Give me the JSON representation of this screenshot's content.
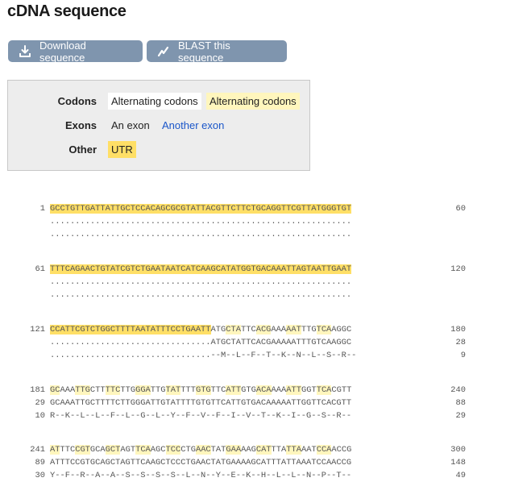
{
  "page_title": "cDNA sequence",
  "buttons": {
    "download_label": "Download sequence",
    "blast_label": "BLAST this sequence"
  },
  "legend": {
    "codons_label": "Codons",
    "codons_items": [
      "Alternating codons",
      "Alternating codons"
    ],
    "exons_label": "Exons",
    "exons_items": [
      "An exon",
      "Another exon"
    ],
    "other_label": "Other",
    "other_items": [
      "UTR"
    ]
  },
  "colors": {
    "utr": "#ffdf66",
    "codon_alt": "#fff6bd",
    "exon_link": "#1a56c9",
    "button": "#7f95ae"
  },
  "blocks": [
    {
      "rows": [
        {
          "left": "1",
          "right": "60",
          "segs": [
            [
              "u",
              "GCCTGTTGATTATTGCTCCACAGCGCGTATTACGTTCTTCTGCAGGTTCGTTATGGGTGT"
            ]
          ]
        },
        {
          "left": "",
          "right": "",
          "segs": [
            [
              "p",
              "............................................................"
            ]
          ]
        },
        {
          "left": "",
          "right": "",
          "segs": [
            [
              "p",
              "............................................................"
            ]
          ]
        }
      ]
    },
    {
      "rows": [
        {
          "left": "61",
          "right": "120",
          "segs": [
            [
              "u",
              "TTTCAGAACTGTATCGTCTGAATAATCATCAAGCATATGGTGACAAATTAGTAATTGAAT"
            ]
          ]
        },
        {
          "left": "",
          "right": "",
          "segs": [
            [
              "p",
              "............................................................"
            ]
          ]
        },
        {
          "left": "",
          "right": "",
          "segs": [
            [
              "p",
              "............................................................"
            ]
          ]
        }
      ]
    },
    {
      "rows": [
        {
          "left": "121",
          "right": "180",
          "segs": [
            [
              "u",
              "CCATTCGTCTGGCTTTTAATATTTCCTGAATT"
            ],
            [
              "p",
              "ATG"
            ],
            [
              "c",
              "CTA"
            ],
            [
              "p",
              "TTC"
            ],
            [
              "c",
              "ACG"
            ],
            [
              "p",
              "AAA"
            ],
            [
              "c",
              "AAT"
            ],
            [
              "p",
              "TTG"
            ],
            [
              "c",
              "TCA"
            ],
            [
              "p",
              "AGGC"
            ]
          ]
        },
        {
          "left": "",
          "right": "28",
          "segs": [
            [
              "p",
              "................................ATGCTATTCACGAAAAATTTGTCAAGGC"
            ]
          ]
        },
        {
          "left": "",
          "right": "9",
          "segs": [
            [
              "p",
              "................................--M--L--F--T--K--N--L--S--R--"
            ]
          ]
        }
      ]
    },
    {
      "rows": [
        {
          "left": "181",
          "right": "240",
          "segs": [
            [
              "c",
              "GC"
            ],
            [
              "p",
              "AAA"
            ],
            [
              "c",
              "TTG"
            ],
            [
              "p",
              "CTT"
            ],
            [
              "c",
              "TTC"
            ],
            [
              "p",
              "TTG"
            ],
            [
              "c",
              "GGA"
            ],
            [
              "p",
              "TTG"
            ],
            [
              "c",
              "TAT"
            ],
            [
              "p",
              "TTT"
            ],
            [
              "c",
              "GTG"
            ],
            [
              "p",
              "TTC"
            ],
            [
              "c",
              "ATT"
            ],
            [
              "p",
              "GTG"
            ],
            [
              "c",
              "ACA"
            ],
            [
              "p",
              "AAA"
            ],
            [
              "c",
              "ATT"
            ],
            [
              "p",
              "GGT"
            ],
            [
              "c",
              "TCA"
            ],
            [
              "p",
              "CGTT"
            ]
          ]
        },
        {
          "left": "29",
          "right": "88",
          "segs": [
            [
              "p",
              "GCAAATTGCTTTTCTTGGGATTGTATTTTGTGTTCATTGTGACAAAAATTGGTTCACGTT"
            ]
          ]
        },
        {
          "left": "10",
          "right": "29",
          "segs": [
            [
              "p",
              "R--K--L--L--F--L--G--L--Y--F--V--F--I--V--T--K--I--G--S--R--"
            ]
          ]
        }
      ]
    },
    {
      "rows": [
        {
          "left": "241",
          "right": "300",
          "segs": [
            [
              "c",
              "AT"
            ],
            [
              "p",
              "TTC"
            ],
            [
              "c",
              "CGT"
            ],
            [
              "p",
              "GCA"
            ],
            [
              "c",
              "GCT"
            ],
            [
              "p",
              "AGT"
            ],
            [
              "c",
              "TCA"
            ],
            [
              "p",
              "AGC"
            ],
            [
              "c",
              "TCC"
            ],
            [
              "p",
              "CTG"
            ],
            [
              "c",
              "AAC"
            ],
            [
              "p",
              "TAT"
            ],
            [
              "c",
              "GAA"
            ],
            [
              "p",
              "AAG"
            ],
            [
              "c",
              "CAT"
            ],
            [
              "p",
              "TTA"
            ],
            [
              "c",
              "TTA"
            ],
            [
              "p",
              "AAT"
            ],
            [
              "c",
              "CCA"
            ],
            [
              "p",
              "ACCG"
            ]
          ]
        },
        {
          "left": "89",
          "right": "148",
          "segs": [
            [
              "p",
              "ATTTCCGTGCAGCTAGTTCAAGCTCCCTGAACTATGAAAAGCATTTATTAAATCCAACCG"
            ]
          ]
        },
        {
          "left": "30",
          "right": "49",
          "segs": [
            [
              "p",
              "Y--F--R--A--A--S--S--S--S--L--N--Y--E--K--H--L--L--N--P--T--"
            ]
          ]
        }
      ]
    }
  ]
}
